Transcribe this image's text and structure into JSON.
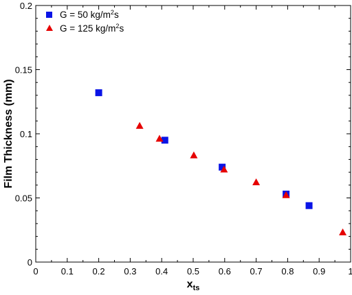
{
  "chart_data": {
    "type": "scatter",
    "xlabel": "x",
    "xlabel_sub": "ts",
    "ylabel": "Film Thickness (mm)",
    "xlim": [
      0,
      1
    ],
    "ylim": [
      0,
      0.2
    ],
    "xticks": [
      0,
      0.1,
      0.2,
      0.3,
      0.4,
      0.5,
      0.6,
      0.7,
      0.8,
      0.9,
      1
    ],
    "xtick_labels": [
      "0",
      "0.1",
      "0.2",
      "0.3",
      "0.4",
      "0.5",
      "0.6",
      "0.7",
      "0.8",
      "0.9",
      "1"
    ],
    "yticks": [
      0,
      0.05,
      0.1,
      0.15,
      0.2
    ],
    "ytick_labels": [
      "0",
      "0.05",
      "0.1",
      "0.15",
      "0.2"
    ],
    "grid": false,
    "legend_position": "top-left",
    "series": [
      {
        "name": "G = 50 kg/m2s",
        "legend_parts": [
          "G = 50 kg/m",
          "2",
          "s"
        ],
        "marker": "square",
        "color": "#0a14e6",
        "x": [
          0.2,
          0.41,
          0.592,
          0.795,
          0.868
        ],
        "y": [
          0.132,
          0.095,
          0.074,
          0.053,
          0.044
        ]
      },
      {
        "name": "G = 125 kg/m2s",
        "legend_parts": [
          "G = 125 kg/m",
          "2",
          "s"
        ],
        "marker": "triangle",
        "color": "#e60000",
        "x": [
          0.33,
          0.393,
          0.502,
          0.598,
          0.7,
          0.795,
          0.975
        ],
        "y": [
          0.106,
          0.096,
          0.083,
          0.072,
          0.062,
          0.052,
          0.023
        ]
      }
    ]
  }
}
